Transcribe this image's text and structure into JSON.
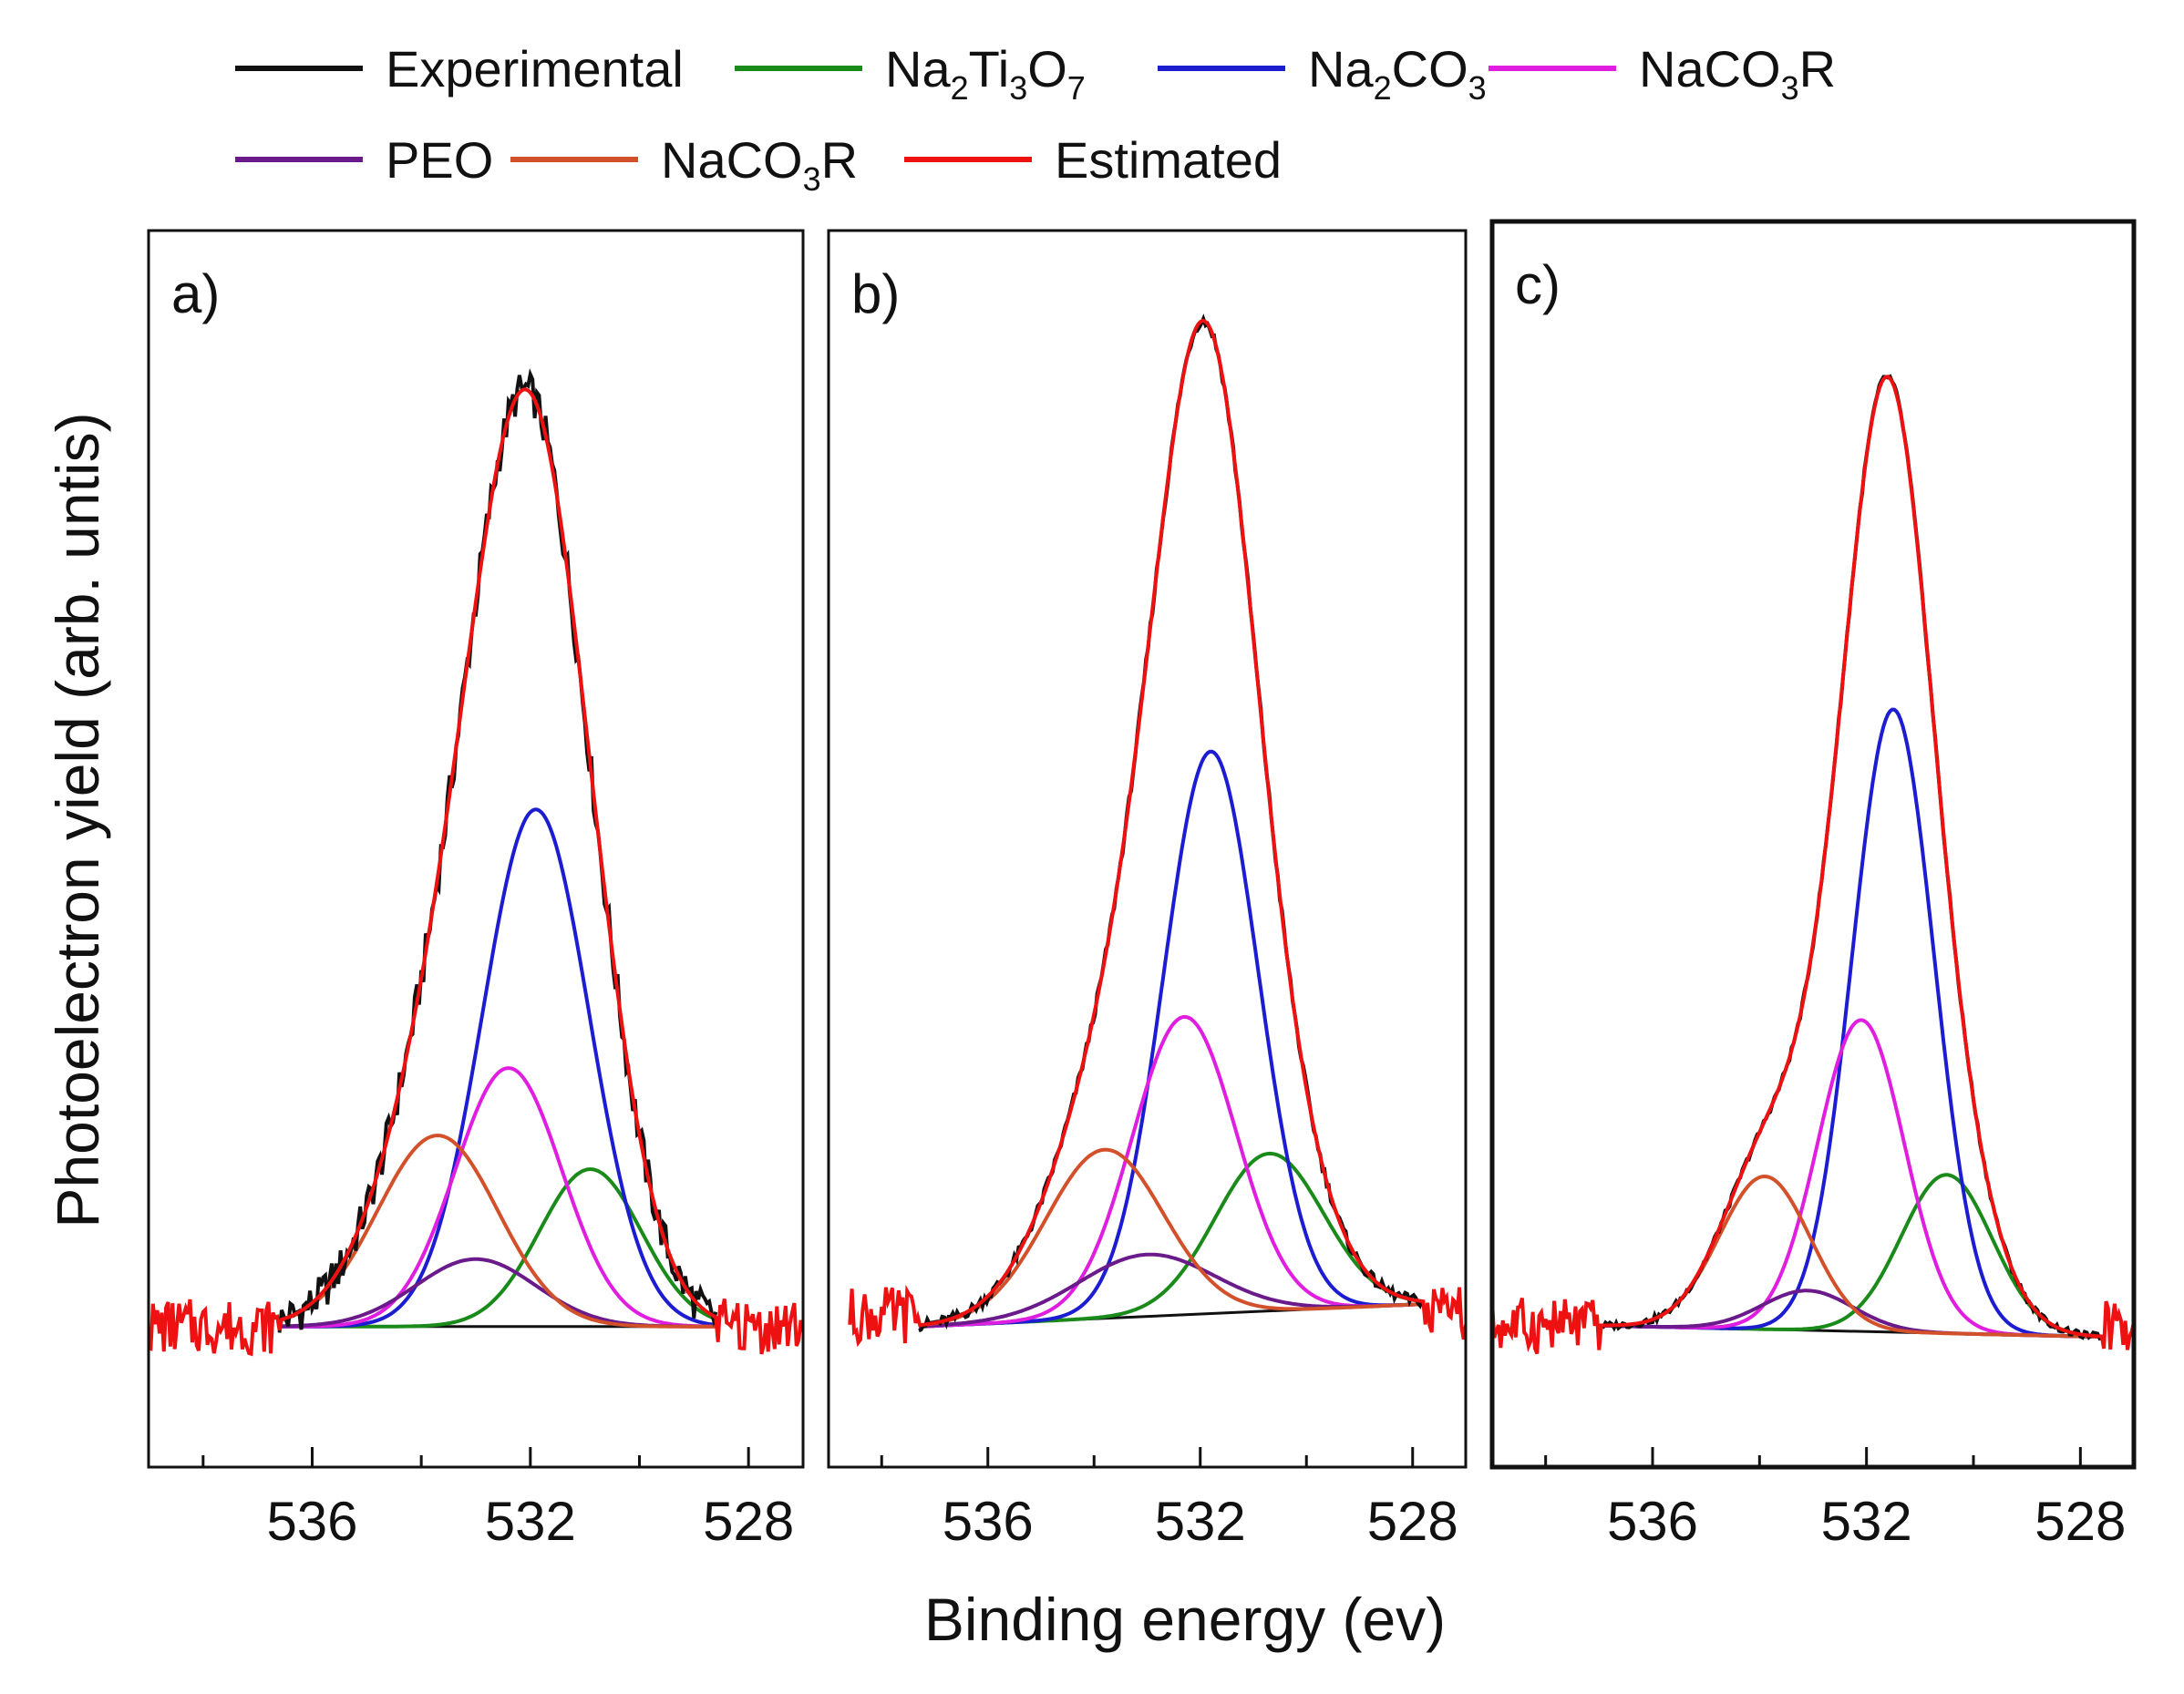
{
  "chart_data": {
    "type": "line",
    "xlabel": "Binding energy (ev)",
    "ylabel": "Photoelectron yield (arb. untis)",
    "x_reversed": true,
    "x_ticks": [
      536,
      532,
      528
    ],
    "legend": {
      "placement": "top",
      "entries": [
        {
          "key": "experimental",
          "label": "Experimental",
          "color": "#111111"
        },
        {
          "key": "na2ti3o7",
          "label": "Na2Ti3O7",
          "color": "#1a8a1a",
          "parts": [
            [
              "Na",
              ""
            ],
            [
              "2",
              "sub"
            ],
            [
              "Ti",
              ""
            ],
            [
              "3",
              "sub"
            ],
            [
              "O",
              ""
            ],
            [
              "7",
              "sub"
            ]
          ]
        },
        {
          "key": "na2co3",
          "label": "Na2CO3",
          "color": "#1c1cd0",
          "parts": [
            [
              "Na",
              ""
            ],
            [
              "2",
              "sub"
            ],
            [
              "CO",
              ""
            ],
            [
              "3",
              "sub"
            ]
          ]
        },
        {
          "key": "naco3r_a",
          "label": "NaCO3R",
          "color": "#e01ee0",
          "parts": [
            [
              "NaCO",
              ""
            ],
            [
              "3",
              "sub"
            ],
            [
              "R",
              ""
            ]
          ]
        },
        {
          "key": "peo",
          "label": "PEO",
          "color": "#6a1a8a"
        },
        {
          "key": "naco3r_b",
          "label": "NaCO3R",
          "color": "#d2502a",
          "parts": [
            [
              "NaCO",
              ""
            ],
            [
              "3",
              "sub"
            ],
            [
              "R",
              ""
            ]
          ]
        },
        {
          "key": "estimated",
          "label": "Estimated",
          "color": "#ee1111"
        }
      ]
    },
    "panels": [
      {
        "label": "a)",
        "xlim": [
          539,
          527
        ],
        "ylim": [
          -0.25,
          1.95
        ],
        "background": {
          "x0": 536.6,
          "y0": 0.0,
          "x1": 528.6,
          "y1": 0.0
        },
        "noise_amplitude": 0.035,
        "experimental_range": [
          536.6,
          528.6
        ],
        "estimated_range": [
          539,
          527
        ],
        "estimated_extension_level": 0.0,
        "components": [
          {
            "key": "na2ti3o7",
            "center": 530.9,
            "fwhm": 2.2,
            "height": 0.28
          },
          {
            "key": "na2co3",
            "center": 531.9,
            "fwhm": 2.3,
            "height": 0.92
          },
          {
            "key": "naco3r_a",
            "center": 532.4,
            "fwhm": 2.3,
            "height": 0.46
          },
          {
            "key": "peo",
            "center": 533.0,
            "fwhm": 2.6,
            "height": 0.12
          },
          {
            "key": "naco3r_b",
            "center": 533.7,
            "fwhm": 2.6,
            "height": 0.34
          }
        ]
      },
      {
        "label": "b)",
        "xlim": [
          539,
          527
        ],
        "ylim": [
          -0.25,
          1.95
        ],
        "background": {
          "x0": 537.3,
          "y0": 0.0,
          "x1": 527.8,
          "y1": 0.04
        },
        "noise_amplitude": 0.01,
        "experimental_range": [
          537.3,
          527.8
        ],
        "estimated_range": [
          538.6,
          527
        ],
        "estimated_extension_level": 0.02,
        "components": [
          {
            "key": "na2ti3o7",
            "center": 530.7,
            "fwhm": 2.4,
            "height": 0.28
          },
          {
            "key": "na2co3",
            "center": 531.8,
            "fwhm": 2.1,
            "height": 1.0
          },
          {
            "key": "naco3r_a",
            "center": 532.3,
            "fwhm": 2.3,
            "height": 0.53
          },
          {
            "key": "peo",
            "center": 533.0,
            "fwhm": 3.0,
            "height": 0.11
          },
          {
            "key": "naco3r_b",
            "center": 533.8,
            "fwhm": 2.6,
            "height": 0.3
          }
        ]
      },
      {
        "label": "c)",
        "xlim": [
          539,
          527
        ],
        "ylim": [
          -0.25,
          1.95
        ],
        "background": {
          "x0": 537.0,
          "y0": 0.0,
          "x1": 527.6,
          "y1": -0.02
        },
        "noise_amplitude": 0.006,
        "experimental_range": [
          537.0,
          527.6
        ],
        "estimated_range": [
          539,
          527
        ],
        "estimated_extension_level": 0.0,
        "components": [
          {
            "key": "na2ti3o7",
            "center": 530.5,
            "fwhm": 2.0,
            "height": 0.28
          },
          {
            "key": "na2co3",
            "center": 531.5,
            "fwhm": 1.8,
            "height": 1.1
          },
          {
            "key": "naco3r_a",
            "center": 532.1,
            "fwhm": 1.9,
            "height": 0.55
          },
          {
            "key": "peo",
            "center": 533.1,
            "fwhm": 2.0,
            "height": 0.07
          },
          {
            "key": "naco3r_b",
            "center": 533.9,
            "fwhm": 2.0,
            "height": 0.27
          }
        ]
      }
    ]
  }
}
